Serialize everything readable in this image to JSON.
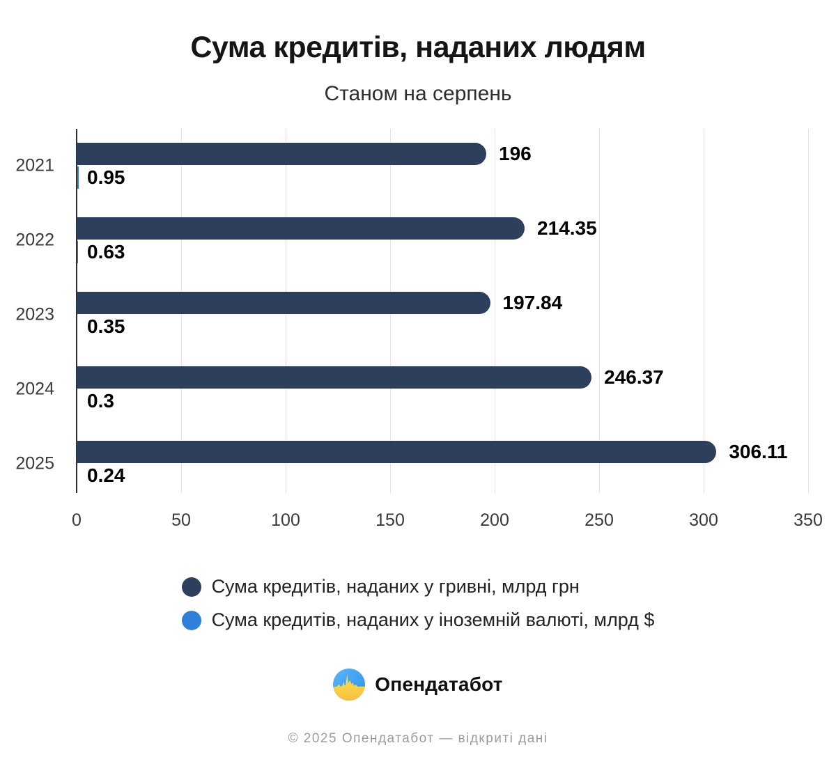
{
  "header": {
    "title": "Сума кредитів, наданих людям",
    "subtitle": "Станом на серпень"
  },
  "chart_data": {
    "type": "bar",
    "orientation": "horizontal",
    "title": "Сума кредитів, наданих людям",
    "subtitle": "Станом на серпень",
    "categories": [
      "2021",
      "2022",
      "2023",
      "2024",
      "2025"
    ],
    "series": [
      {
        "name": "Сума кредитів, наданих у гривні, млрд грн",
        "color": "#2e3f5e",
        "values": [
          196,
          214.35,
          197.84,
          246.37,
          306.11
        ]
      },
      {
        "name": "Сума кредитів, наданих у іноземній валюті, млрд $",
        "color": "#2f80d9",
        "values": [
          0.95,
          0.63,
          0.35,
          0.3,
          0.24
        ]
      }
    ],
    "x_ticks": [
      0,
      50,
      100,
      150,
      200,
      250,
      300,
      350
    ],
    "xlim": [
      0,
      350
    ],
    "grid": "vertical-only",
    "legend_position": "bottom",
    "value_labels": "outside-end"
  },
  "colors": {
    "bar_primary": "#2e3f5e",
    "bar_secondary": "#2f80d9",
    "grid": "#e4e4e4",
    "axis": "#2e2e2e",
    "logo_blue": "#38a1f2",
    "logo_yellow": "#ffd84d"
  },
  "footer": {
    "brand": "Опендатабот",
    "copyright": "© 2025 Опендатабот — відкриті дані"
  }
}
